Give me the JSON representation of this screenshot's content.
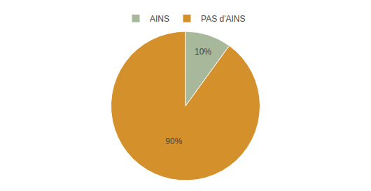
{
  "chart_data": {
    "type": "pie",
    "categories": [
      "AINS",
      "PAS d'AINS"
    ],
    "values": [
      10,
      90
    ],
    "value_labels": [
      "10%",
      "90%"
    ],
    "colors": [
      "#a8b89a",
      "#d4902a"
    ],
    "data_labels": true,
    "legend": "top"
  }
}
